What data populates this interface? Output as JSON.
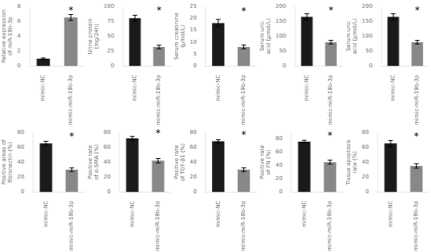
{
  "chart_data": [
    {
      "type": "bar",
      "categories": [
        "mimic-NC",
        "mimic-miR-19b-3p"
      ],
      "values": [
        1.0,
        6.5
      ],
      "errors": [
        0.1,
        0.4
      ],
      "colors": [
        "#1a1a1a",
        "#888888"
      ],
      "ylabel": "Relative expression of miR-19b-3p",
      "ylim": [
        0,
        8
      ],
      "yticks": [
        0,
        2,
        4,
        6,
        8
      ],
      "grid": false,
      "annotations": [
        {
          "text": "*",
          "x": "mimic-miR-19b-3p",
          "y": 7.2
        }
      ]
    },
    {
      "type": "bar",
      "categories": [
        "mimic-NC",
        "mimic-miR-19b-3p"
      ],
      "values": [
        80,
        32
      ],
      "errors": [
        5,
        3
      ],
      "colors": [
        "#1a1a1a",
        "#888888"
      ],
      "ylabel": "Urine protein (mg/24h)",
      "ylim": [
        0,
        100
      ],
      "yticks": [
        0,
        25,
        50,
        75,
        100
      ],
      "grid": false,
      "annotations": [
        {
          "text": "*",
          "x": "mimic-miR-19b-3p",
          "y": 90
        }
      ]
    },
    {
      "type": "bar",
      "categories": [
        "mimic-NC",
        "mimic-miR-19b-3p"
      ],
      "values": [
        18,
        8
      ],
      "errors": [
        1.5,
        0.8
      ],
      "colors": [
        "#1a1a1a",
        "#888888"
      ],
      "ylabel": "Serum creatinine (μmol/L)",
      "ylim": [
        0,
        25
      ],
      "yticks": [
        0,
        5,
        10,
        15,
        20,
        25
      ],
      "grid": false,
      "annotations": [
        {
          "text": "*",
          "x": "mimic-miR-19b-3p",
          "y": 22
        }
      ]
    },
    {
      "type": "bar",
      "categories": [
        "mimic-NC",
        "mimic-miR-19b-3p"
      ],
      "values": [
        165,
        80
      ],
      "errors": [
        10,
        6
      ],
      "colors": [
        "#1a1a1a",
        "#888888"
      ],
      "ylabel": "Serum uric acid (μmol/L)",
      "ylim": [
        0,
        200
      ],
      "yticks": [
        0,
        50,
        100,
        150,
        200
      ],
      "grid": false,
      "annotations": [
        {
          "text": "*",
          "x": "mimic-miR-19b-3p",
          "y": 180
        }
      ]
    },
    {
      "type": "bar",
      "categories": [
        "mimic-NC",
        "mimic-miR-19b-3p"
      ],
      "values": [
        165,
        80
      ],
      "errors": [
        10,
        6
      ],
      "colors": [
        "#1a1a1a",
        "#888888"
      ],
      "ylabel": "Serum uric acid (μmol/L)",
      "ylim": [
        0,
        200
      ],
      "yticks": [
        0,
        50,
        100,
        150,
        200
      ],
      "grid": false,
      "annotations": [
        {
          "text": "*",
          "x": "mimic-miR-19b-3p",
          "y": 180
        }
      ]
    },
    {
      "type": "bar",
      "categories": [
        "mimic-NC",
        "mimic-miR-19b-3p"
      ],
      "values": [
        65,
        30
      ],
      "errors": [
        3,
        2.5
      ],
      "colors": [
        "#1a1a1a",
        "#888888"
      ],
      "ylabel": "Positive areas of fibronectin (%)",
      "ylim": [
        0,
        80
      ],
      "yticks": [
        0,
        20,
        40,
        60,
        80
      ],
      "grid": false,
      "annotations": [
        {
          "text": "*",
          "x": "mimic-miR-19b-3p",
          "y": 72
        }
      ]
    },
    {
      "type": "bar",
      "categories": [
        "mimic-NC",
        "mimic-miR-19b-3p"
      ],
      "values": [
        72,
        42
      ],
      "errors": [
        2.5,
        3
      ],
      "colors": [
        "#1a1a1a",
        "#888888"
      ],
      "ylabel": "Positive rate of α-SMA (%)",
      "ylim": [
        0,
        80
      ],
      "yticks": [
        0,
        20,
        40,
        60,
        80
      ],
      "grid": false,
      "annotations": [
        {
          "text": "*",
          "x": "mimic-miR-19b-3p",
          "y": 76
        }
      ]
    },
    {
      "type": "bar",
      "categories": [
        "mimic-NC",
        "mimic-miR-19b-3p"
      ],
      "values": [
        68,
        30
      ],
      "errors": [
        2,
        2.5
      ],
      "colors": [
        "#1a1a1a",
        "#888888"
      ],
      "ylabel": "Positive rate of TGF-β1 (%)",
      "ylim": [
        0,
        80
      ],
      "yticks": [
        0,
        20,
        40,
        60,
        80
      ],
      "grid": false,
      "annotations": [
        {
          "text": "*",
          "x": "mimic-miR-19b-3p",
          "y": 74
        }
      ]
    },
    {
      "type": "bar",
      "categories": [
        "mimic-NC",
        "mimic-miR-19b-3p"
      ],
      "values": [
        76,
        45
      ],
      "errors": [
        2,
        3
      ],
      "colors": [
        "#1a1a1a",
        "#888888"
      ],
      "ylabel": "Positive rate of FN (%)",
      "ylim": [
        0,
        90
      ],
      "yticks": [
        0,
        20,
        40,
        60,
        80
      ],
      "grid": false,
      "annotations": [
        {
          "text": "*",
          "x": "mimic-miR-19b-3p",
          "y": 82
        }
      ]
    },
    {
      "type": "bar",
      "categories": [
        "mimic-NC",
        "mimic-miR-19b-3p"
      ],
      "values": [
        65,
        35
      ],
      "errors": [
        4,
        3
      ],
      "colors": [
        "#1a1a1a",
        "#888888"
      ],
      "ylabel": "Tissue apoptosis rate (%)",
      "ylim": [
        0,
        80
      ],
      "yticks": [
        0,
        20,
        40,
        60,
        80
      ],
      "grid": false,
      "annotations": [
        {
          "text": "*",
          "x": "mimic-miR-19b-3p",
          "y": 72
        }
      ]
    }
  ]
}
